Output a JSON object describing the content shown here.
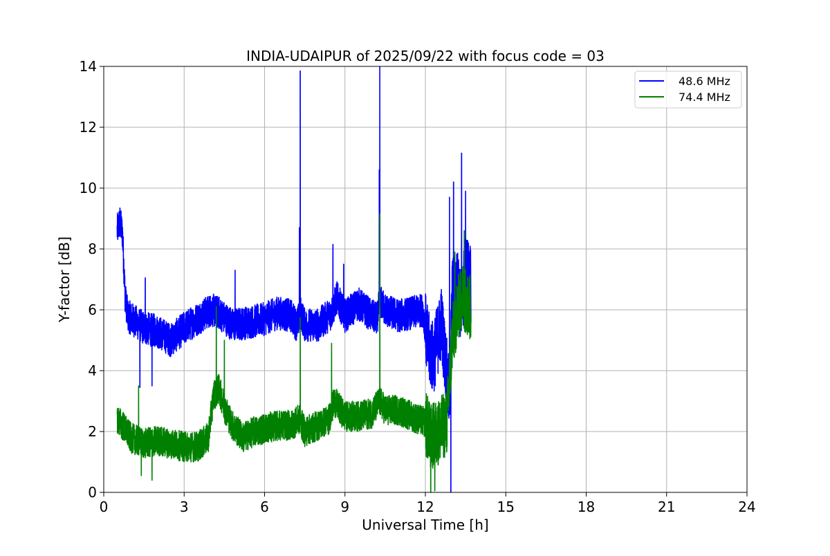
{
  "chart_data": {
    "type": "line",
    "title": "INDIA-UDAIPUR of 2025/09/22 with focus code = 03",
    "xlabel": "Universal Time [h]",
    "ylabel": "Y-factor [dB]",
    "xlim": [
      0,
      24
    ],
    "ylim": [
      0,
      14
    ],
    "xticks": [
      0,
      3,
      6,
      9,
      12,
      15,
      18,
      21,
      24
    ],
    "yticks": [
      0,
      2,
      4,
      6,
      8,
      10,
      12,
      14
    ],
    "grid": true,
    "legend_position": "top-right",
    "series": [
      {
        "name": "48.6 MHz",
        "color": "#0000ff",
        "noise": 0.55,
        "x": [
          0.5,
          0.6,
          0.7,
          0.8,
          0.9,
          1.2,
          1.5,
          2.0,
          2.5,
          3.0,
          3.5,
          4.0,
          4.3,
          4.8,
          5.5,
          6.0,
          6.5,
          7.0,
          7.2,
          7.35,
          7.5,
          8.0,
          8.5,
          8.7,
          9.0,
          9.5,
          10.0,
          10.2,
          10.3,
          10.5,
          11.0,
          11.5,
          11.9,
          12.1,
          12.3,
          12.6,
          12.9,
          13.0,
          13.2,
          13.35,
          13.5,
          13.7
        ],
        "y": [
          8.6,
          8.9,
          8.5,
          6.4,
          5.8,
          5.6,
          5.4,
          5.3,
          5.0,
          5.4,
          5.7,
          6.0,
          5.9,
          5.5,
          5.6,
          5.7,
          5.9,
          5.8,
          5.5,
          5.9,
          5.5,
          5.5,
          5.9,
          6.4,
          5.8,
          6.2,
          5.8,
          5.7,
          6.3,
          6.0,
          5.8,
          5.9,
          6.0,
          4.8,
          4.4,
          5.6,
          3.0,
          6.5,
          6.8,
          6.0,
          7.5,
          6.8
        ],
        "spikes": [
          {
            "x": 1.55,
            "y": 7.05
          },
          {
            "x": 1.35,
            "y": 3.45
          },
          {
            "x": 1.8,
            "y": 3.5
          },
          {
            "x": 4.9,
            "y": 7.3
          },
          {
            "x": 7.33,
            "y": 13.85
          },
          {
            "x": 7.3,
            "y": 8.7
          },
          {
            "x": 8.55,
            "y": 8.15
          },
          {
            "x": 8.95,
            "y": 7.5
          },
          {
            "x": 10.3,
            "y": 14.0
          },
          {
            "x": 10.28,
            "y": 10.6
          },
          {
            "x": 12.95,
            "y": 0.0
          },
          {
            "x": 12.9,
            "y": 9.7
          },
          {
            "x": 13.05,
            "y": 10.2
          },
          {
            "x": 13.35,
            "y": 11.15
          },
          {
            "x": 13.5,
            "y": 9.9
          }
        ]
      },
      {
        "name": "74.4 MHz",
        "color": "#008000",
        "noise": 0.5,
        "x": [
          0.5,
          0.7,
          1.0,
          1.5,
          2.0,
          2.5,
          3.0,
          3.5,
          3.9,
          4.1,
          4.3,
          4.5,
          4.8,
          5.2,
          5.6,
          6.0,
          6.5,
          7.0,
          7.3,
          7.5,
          8.0,
          8.4,
          8.6,
          9.0,
          9.5,
          10.0,
          10.3,
          10.5,
          11.0,
          11.5,
          12.0,
          12.2,
          12.5,
          12.8,
          13.0,
          13.2,
          13.4,
          13.7
        ],
        "y": [
          2.4,
          2.2,
          1.8,
          1.6,
          1.7,
          1.6,
          1.5,
          1.5,
          1.8,
          3.2,
          3.4,
          2.8,
          2.2,
          1.8,
          2.0,
          2.1,
          2.2,
          2.2,
          2.4,
          2.0,
          2.2,
          2.4,
          3.0,
          2.5,
          2.5,
          2.6,
          3.0,
          2.7,
          2.7,
          2.5,
          2.3,
          1.8,
          2.0,
          2.3,
          5.0,
          6.0,
          6.5,
          6.0
        ],
        "spikes": [
          {
            "x": 1.3,
            "y": 3.5
          },
          {
            "x": 1.4,
            "y": 0.55
          },
          {
            "x": 1.8,
            "y": 0.4
          },
          {
            "x": 4.2,
            "y": 6.1
          },
          {
            "x": 4.5,
            "y": 5.0
          },
          {
            "x": 7.33,
            "y": 5.75
          },
          {
            "x": 8.5,
            "y": 4.9
          },
          {
            "x": 10.3,
            "y": 9.15
          },
          {
            "x": 12.2,
            "y": 0.0
          },
          {
            "x": 12.35,
            "y": 0.05
          },
          {
            "x": 13.1,
            "y": 7.9
          },
          {
            "x": 13.45,
            "y": 8.6
          }
        ]
      }
    ]
  }
}
